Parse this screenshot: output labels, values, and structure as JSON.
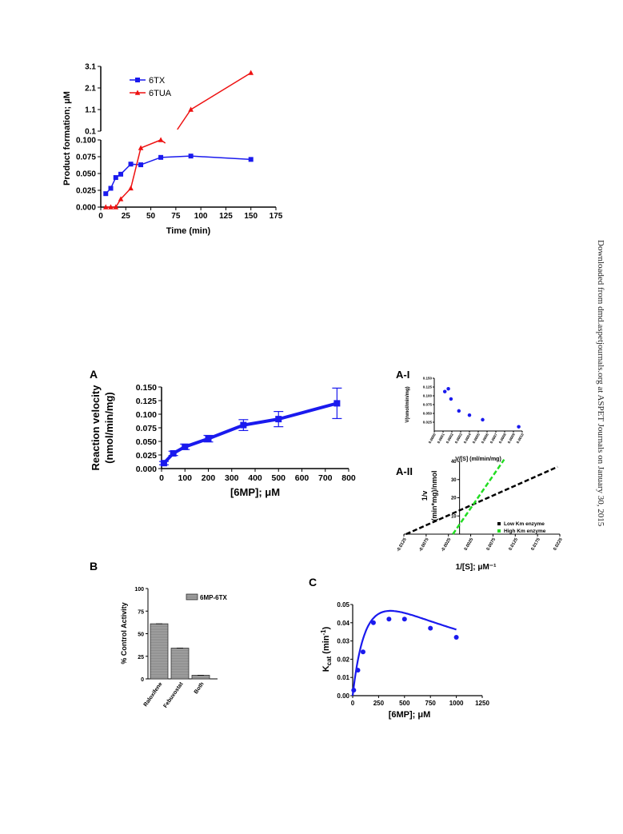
{
  "side_note": "Downloaded from dmd.aspetjournals.org at ASPET Journals on January 30, 2015",
  "colors": {
    "blue": "#1a1aee",
    "red": "#ee1111",
    "black": "#000000",
    "green": "#22dd22",
    "gray_bar": "#8a8a8a"
  },
  "chart_data": [
    {
      "id": "product-formation",
      "type": "line",
      "title": "",
      "xlabel": "Time (min)",
      "ylabel": "Product formation; μM",
      "xlim": [
        0,
        175
      ],
      "xticks": [
        0,
        25,
        50,
        75,
        100,
        125,
        150,
        175
      ],
      "ylim_lower": [
        0,
        0.1
      ],
      "yticks_lower": [
        "0.000",
        "0.025",
        "0.050",
        "0.075",
        "0.100"
      ],
      "ylim_upper": [
        0.1,
        3.1
      ],
      "yticks_upper": [
        "0.1",
        "1.1",
        "2.1",
        "3.1"
      ],
      "legend_position": "top-left",
      "series": [
        {
          "name": "6TX",
          "color": "#1a1aee",
          "marker": "square",
          "x": [
            5,
            10,
            15,
            20,
            30,
            40,
            60,
            90,
            150
          ],
          "y": [
            0.02,
            0.028,
            0.044,
            0.049,
            0.064,
            0.063,
            0.074,
            0.076,
            0.071
          ]
        },
        {
          "name": "6TUA",
          "color": "#ee1111",
          "marker": "triangle",
          "x": [
            5,
            10,
            15,
            20,
            30,
            40,
            60,
            90,
            150
          ],
          "y": [
            0.0,
            0.0,
            0.0,
            0.012,
            0.028,
            0.088,
            0.1,
            1.1,
            2.8
          ]
        }
      ]
    },
    {
      "id": "panel-a",
      "panel_label": "A",
      "type": "line",
      "title": "",
      "xlabel": "[6MP]; μM",
      "ylabel_line1": "Reaction velocity",
      "ylabel_line2": "(nmol/min/mg)",
      "xlim": [
        0,
        800
      ],
      "xticks": [
        0,
        100,
        200,
        300,
        400,
        500,
        600,
        700,
        800
      ],
      "ylim": [
        0,
        0.15
      ],
      "yticks": [
        "0.000",
        "0.025",
        "0.050",
        "0.075",
        "0.100",
        "0.125",
        "0.150"
      ],
      "series": [
        {
          "name": "",
          "color": "#1a1aee",
          "marker": "square",
          "x": [
            10,
            50,
            100,
            200,
            350,
            500,
            750
          ],
          "y": [
            0.01,
            0.028,
            0.04,
            0.055,
            0.08,
            0.091,
            0.12
          ],
          "err": [
            0.003,
            0.004,
            0.005,
            0.006,
            0.01,
            0.014,
            0.028
          ]
        }
      ]
    },
    {
      "id": "panel-a1",
      "panel_label": "A-I",
      "type": "scatter",
      "title": "",
      "xlabel": "V/[S] (ml/min/mg)",
      "ylabel": "V(nmol/min/mg)",
      "xlim": [
        0,
        0.001
      ],
      "xticks": [
        "0.0000",
        "0.0001",
        "0.0002",
        "0.0003",
        "0.0004",
        "0.0005",
        "0.0006",
        "0.0007",
        "0.0008",
        "0.0009",
        "0.0010"
      ],
      "ylim": [
        0,
        0.15
      ],
      "yticks": [
        "0.025",
        "0.050",
        "0.075",
        "0.100",
        "0.125",
        "0.150"
      ],
      "series": [
        {
          "name": "",
          "color": "#1a1aee",
          "x": [
            0.00012,
            0.00016,
            0.00019,
            0.00028,
            0.0004,
            0.00055,
            0.00096
          ],
          "y": [
            0.112,
            0.12,
            0.091,
            0.057,
            0.045,
            0.032,
            0.012
          ]
        }
      ]
    },
    {
      "id": "panel-a2",
      "panel_label": "A-II",
      "type": "line",
      "title": "",
      "xlabel": "1/[S]; μM⁻¹",
      "ylabel_line1": "1/v",
      "ylabel_line2": "(min*mg)/nmol",
      "xlim": [
        -0.0125,
        0.0225
      ],
      "xticks": [
        "-0.0125",
        "-0.0075",
        "-0.0025",
        "0.0025",
        "0.0075",
        "0.0125",
        "0.0175",
        "0.0225"
      ],
      "ylim": [
        0,
        40
      ],
      "yticks": [
        "10",
        "20",
        "30",
        "40"
      ],
      "legend_position": "bottom-right",
      "series": [
        {
          "name": "Low Km enzyme",
          "color": "#000000",
          "x": [
            -0.012,
            0.022
          ],
          "y": [
            0,
            37
          ]
        },
        {
          "name": "High Km enzyme",
          "color": "#22dd22",
          "x": [
            -0.0015,
            0.01
          ],
          "y": [
            0,
            41
          ]
        }
      ]
    },
    {
      "id": "panel-b",
      "panel_label": "B",
      "type": "bar",
      "title": "",
      "xlabel": "",
      "ylabel": "% Control Activity",
      "ylim": [
        0,
        100
      ],
      "yticks": [
        "0",
        "25",
        "50",
        "75",
        "100"
      ],
      "legend_position": "top-right",
      "categories": [
        "Raloxifene",
        "Febuxostat",
        "Both"
      ],
      "series": [
        {
          "name": "6MP-6TX",
          "values": [
            61,
            34,
            4
          ]
        }
      ]
    },
    {
      "id": "panel-c",
      "panel_label": "C",
      "type": "line",
      "title": "",
      "xlabel": "[6MP]; μM",
      "ylabel": "K",
      "ylabel_sub": "cat",
      "ylabel_rest": " (min",
      "ylabel_sup": "-1",
      "ylabel_end": ")",
      "xlim": [
        0,
        1250
      ],
      "xticks": [
        "0",
        "250",
        "500",
        "750",
        "1000",
        "1250"
      ],
      "ylim": [
        0,
        0.05
      ],
      "yticks": [
        "0.00",
        "0.01",
        "0.02",
        "0.03",
        "0.04",
        "0.05"
      ],
      "series": [
        {
          "name": "",
          "color": "#1a1aee",
          "x": [
            10,
            50,
            100,
            200,
            350,
            500,
            750,
            1000
          ],
          "y": [
            0.003,
            0.014,
            0.024,
            0.04,
            0.042,
            0.042,
            0.037,
            0.032
          ]
        }
      ]
    }
  ]
}
